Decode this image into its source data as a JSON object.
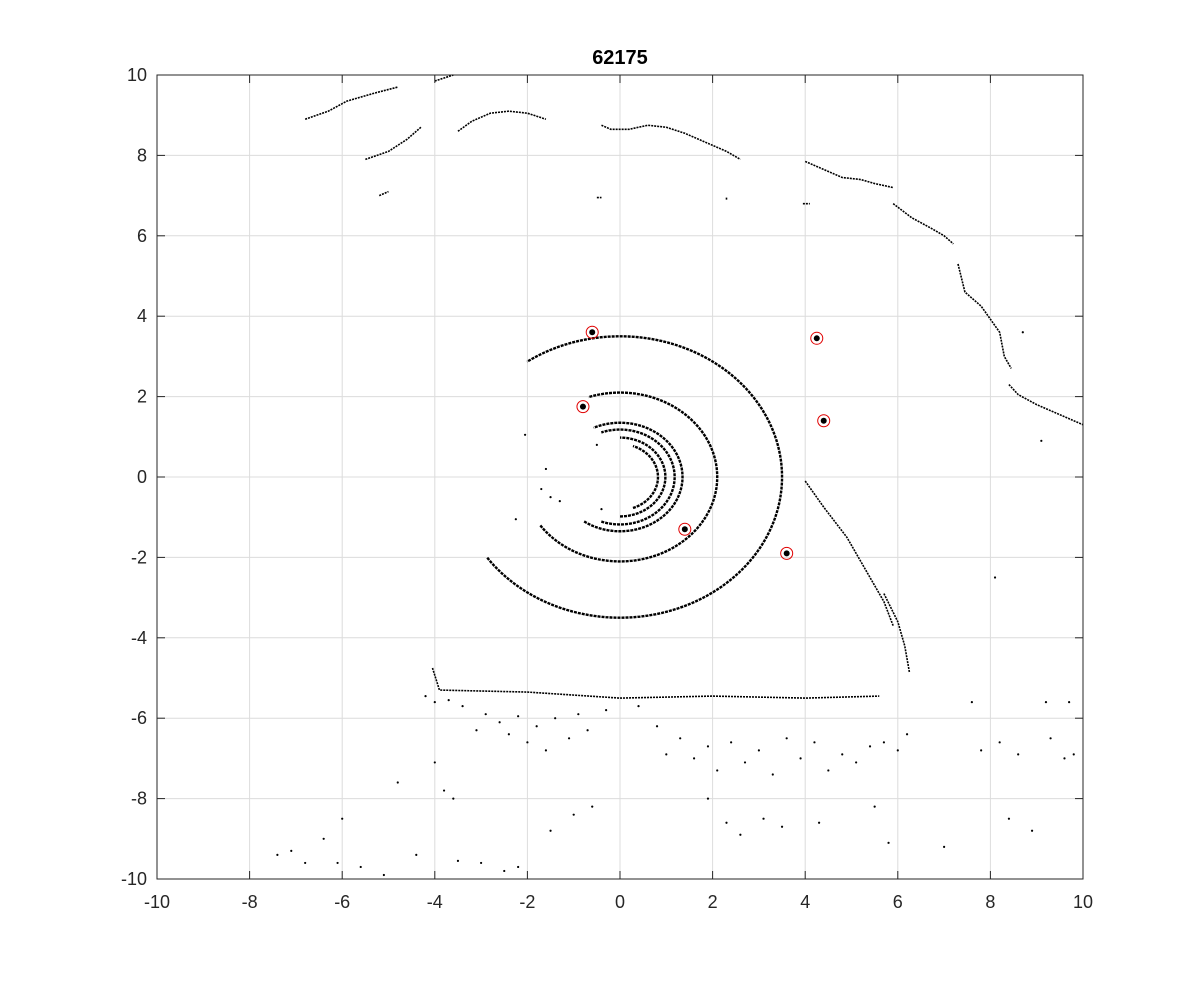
{
  "chart_data": {
    "type": "scatter",
    "title": "62175",
    "xlabel": "",
    "ylabel": "",
    "xlim": [
      -10,
      10
    ],
    "ylim": [
      -10,
      10
    ],
    "grid": true,
    "x_ticks": [
      -10,
      -8,
      -6,
      -4,
      -2,
      0,
      2,
      4,
      6,
      8,
      10
    ],
    "y_ticks": [
      -10,
      -8,
      -6,
      -4,
      -2,
      0,
      2,
      4,
      6,
      8,
      10
    ],
    "x_tick_labels": [
      "-10",
      "-8",
      "-6",
      "-4",
      "-2",
      "0",
      "2",
      "4",
      "6",
      "8",
      "10"
    ],
    "y_tick_labels": [
      "-10",
      "-8",
      "-6",
      "-4",
      "-2",
      "0",
      "2",
      "4",
      "6",
      "8",
      "10"
    ],
    "colors": {
      "points": "#000000",
      "markers": "#e00000",
      "grid": "#dcdcdc"
    },
    "rings": [
      {
        "radius": 0.82,
        "start_deg": -70,
        "end_deg": 70
      },
      {
        "radius": 0.98,
        "start_deg": -90,
        "end_deg": 90
      },
      {
        "radius": 1.18,
        "start_deg": -110,
        "end_deg": 110
      },
      {
        "radius": 1.35,
        "start_deg": -125,
        "end_deg": 115
      },
      {
        "radius": 2.1,
        "start_deg": -145,
        "end_deg": 110
      },
      {
        "radius": 3.5,
        "start_deg": -145,
        "end_deg": 125
      }
    ],
    "series": [
      {
        "style": "polyline",
        "segments": [
          [
            [
              -3.5,
              8.6
            ],
            [
              -3.2,
              8.85
            ],
            [
              -2.8,
              9.05
            ],
            [
              -2.4,
              9.1
            ],
            [
              -2.0,
              9.05
            ],
            [
              -1.6,
              8.9
            ]
          ],
          [
            [
              -0.4,
              8.75
            ],
            [
              -0.2,
              8.65
            ],
            [
              0.2,
              8.65
            ],
            [
              0.6,
              8.75
            ],
            [
              1.0,
              8.7
            ],
            [
              1.4,
              8.55
            ],
            [
              1.8,
              8.35
            ],
            [
              2.3,
              8.1
            ],
            [
              2.6,
              7.9
            ]
          ],
          [
            [
              4.0,
              7.85
            ],
            [
              4.4,
              7.65
            ],
            [
              4.8,
              7.45
            ],
            [
              5.2,
              7.4
            ],
            [
              5.5,
              7.3
            ],
            [
              5.9,
              7.2
            ]
          ],
          [
            [
              5.9,
              6.8
            ],
            [
              6.3,
              6.45
            ],
            [
              6.7,
              6.2
            ],
            [
              7.0,
              6.0
            ],
            [
              7.2,
              5.8
            ]
          ],
          [
            [
              7.3,
              5.3
            ],
            [
              7.45,
              4.6
            ],
            [
              7.8,
              4.25
            ],
            [
              8.2,
              3.6
            ],
            [
              8.3,
              3.0
            ],
            [
              8.45,
              2.7
            ]
          ],
          [
            [
              8.4,
              2.3
            ],
            [
              8.6,
              2.05
            ],
            [
              9.0,
              1.8
            ],
            [
              9.5,
              1.55
            ],
            [
              10.0,
              1.3
            ]
          ],
          [
            [
              -5.5,
              7.9
            ],
            [
              -5.0,
              8.1
            ],
            [
              -4.6,
              8.4
            ],
            [
              -4.3,
              8.7
            ]
          ],
          [
            [
              -6.8,
              8.9
            ],
            [
              -6.3,
              9.1
            ],
            [
              -5.9,
              9.35
            ],
            [
              -5.3,
              9.55
            ],
            [
              -4.8,
              9.7
            ]
          ],
          [
            [
              -4.0,
              9.85
            ],
            [
              -3.6,
              10.0
            ]
          ],
          [
            [
              -4.05,
              -4.75
            ],
            [
              -3.9,
              -5.3
            ],
            [
              -2.0,
              -5.35
            ],
            [
              0.0,
              -5.5
            ],
            [
              2.0,
              -5.45
            ],
            [
              4.0,
              -5.5
            ],
            [
              5.6,
              -5.45
            ]
          ],
          [
            [
              4.0,
              -0.1
            ],
            [
              4.4,
              -0.75
            ],
            [
              4.9,
              -1.5
            ],
            [
              5.3,
              -2.3
            ],
            [
              5.7,
              -3.1
            ],
            [
              5.9,
              -3.7
            ]
          ],
          [
            [
              5.7,
              -2.9
            ],
            [
              6.0,
              -3.6
            ],
            [
              6.15,
              -4.2
            ],
            [
              6.25,
              -4.85
            ]
          ],
          [
            [
              2.3,
              6.9
            ],
            [
              2.3,
              6.95
            ]
          ],
          [
            [
              -5.2,
              7.0
            ],
            [
              -5.0,
              7.1
            ]
          ],
          [
            [
              3.95,
              6.8
            ],
            [
              4.1,
              6.8
            ]
          ],
          [
            [
              -0.5,
              6.95
            ],
            [
              -0.4,
              6.95
            ]
          ]
        ]
      },
      {
        "style": "scatter",
        "points": [
          [
            -4.2,
            -5.45
          ],
          [
            -4.0,
            -5.6
          ],
          [
            -3.7,
            -5.55
          ],
          [
            -3.4,
            -5.7
          ],
          [
            -3.1,
            -6.3
          ],
          [
            -2.9,
            -5.9
          ],
          [
            -2.6,
            -6.1
          ],
          [
            -2.4,
            -6.4
          ],
          [
            -2.2,
            -5.95
          ],
          [
            -2.0,
            -6.6
          ],
          [
            -1.8,
            -6.2
          ],
          [
            -1.6,
            -6.8
          ],
          [
            -1.4,
            -6.0
          ],
          [
            -1.1,
            -6.5
          ],
          [
            -0.9,
            -5.9
          ],
          [
            -0.7,
            -6.3
          ],
          [
            -0.3,
            -5.8
          ],
          [
            0.4,
            -5.7
          ],
          [
            0.8,
            -6.2
          ],
          [
            1.0,
            -6.9
          ],
          [
            1.3,
            -6.5
          ],
          [
            1.6,
            -7.0
          ],
          [
            1.9,
            -6.7
          ],
          [
            2.1,
            -7.3
          ],
          [
            2.4,
            -6.6
          ],
          [
            2.7,
            -7.1
          ],
          [
            3.0,
            -6.8
          ],
          [
            3.3,
            -7.4
          ],
          [
            3.6,
            -6.5
          ],
          [
            3.9,
            -7.0
          ],
          [
            4.2,
            -6.6
          ],
          [
            4.5,
            -7.3
          ],
          [
            4.8,
            -6.9
          ],
          [
            5.1,
            -7.1
          ],
          [
            5.4,
            -6.7
          ],
          [
            5.7,
            -6.6
          ],
          [
            6.0,
            -6.8
          ],
          [
            6.2,
            -6.4
          ],
          [
            -4.0,
            -7.1
          ],
          [
            -3.8,
            -7.8
          ],
          [
            -3.6,
            -8.0
          ],
          [
            -4.8,
            -7.6
          ],
          [
            -6.0,
            -8.5
          ],
          [
            -6.4,
            -9.0
          ],
          [
            -6.8,
            -9.6
          ],
          [
            -7.1,
            -9.3
          ],
          [
            -7.4,
            -9.4
          ],
          [
            -6.1,
            -9.6
          ],
          [
            -5.6,
            -9.7
          ],
          [
            -5.1,
            -9.9
          ],
          [
            -4.4,
            -9.4
          ],
          [
            -3.5,
            -9.55
          ],
          [
            -3.0,
            -9.6
          ],
          [
            -2.5,
            -9.8
          ],
          [
            -2.2,
            -9.7
          ],
          [
            -1.0,
            -8.4
          ],
          [
            -0.6,
            -8.2
          ],
          [
            -1.5,
            -8.8
          ],
          [
            1.9,
            -8.0
          ],
          [
            2.3,
            -8.6
          ],
          [
            2.6,
            -8.9
          ],
          [
            3.1,
            -8.5
          ],
          [
            3.5,
            -8.7
          ],
          [
            4.3,
            -8.6
          ],
          [
            5.5,
            -8.2
          ],
          [
            5.8,
            -9.1
          ],
          [
            7.0,
            -9.2
          ],
          [
            8.4,
            -8.5
          ],
          [
            8.9,
            -8.8
          ],
          [
            9.3,
            -6.5
          ],
          [
            9.6,
            -7.0
          ],
          [
            9.8,
            -6.9
          ],
          [
            7.6,
            -5.6
          ],
          [
            8.2,
            -6.6
          ],
          [
            7.8,
            -6.8
          ],
          [
            8.6,
            -6.9
          ],
          [
            9.2,
            -5.6
          ],
          [
            9.7,
            -5.6
          ],
          [
            8.1,
            -2.5
          ],
          [
            8.7,
            3.6
          ],
          [
            9.1,
            0.9
          ],
          [
            -2.05,
            1.05
          ],
          [
            -2.25,
            -1.05
          ],
          [
            -1.6,
            0.2
          ],
          [
            -1.5,
            -0.5
          ],
          [
            -1.7,
            -0.3
          ],
          [
            -1.3,
            -0.6
          ],
          [
            -0.5,
            0.8
          ],
          [
            -0.4,
            -0.8
          ]
        ]
      }
    ],
    "markers": [
      {
        "x": -0.6,
        "y": 3.6
      },
      {
        "x": 4.25,
        "y": 3.45
      },
      {
        "x": -0.8,
        "y": 1.75
      },
      {
        "x": 4.4,
        "y": 1.4
      },
      {
        "x": 1.4,
        "y": -1.3
      },
      {
        "x": 3.6,
        "y": -1.9
      }
    ]
  }
}
